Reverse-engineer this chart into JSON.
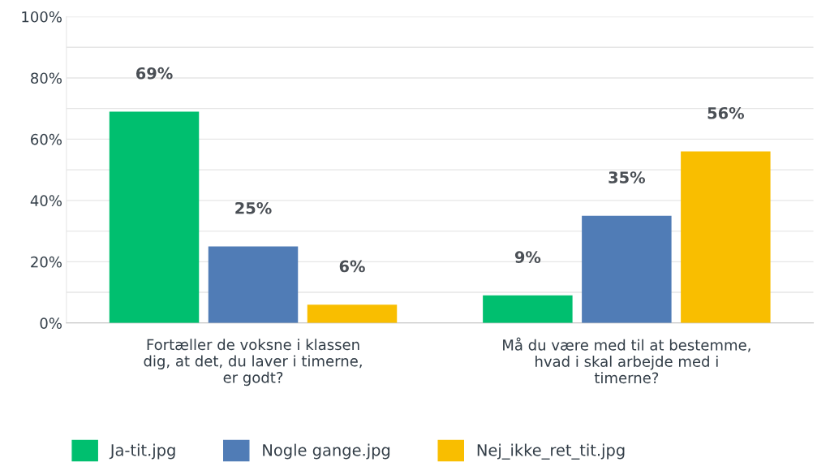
{
  "chart_data": {
    "type": "bar",
    "categories": [
      "Fortæller de voksne i klassen\ndig, at det, du laver i timerne,\ner godt?",
      "Må du være med til at bestemme,\nhvad i skal arbejde med i\ntimerne?"
    ],
    "series": [
      {
        "name": "Ja-tit.jpg",
        "color": "#00bf6f",
        "values": [
          69,
          9
        ]
      },
      {
        "name": "Nogle gange.jpg",
        "color": "#507cb6",
        "values": [
          25,
          35
        ]
      },
      {
        "name": "Nej_ikke_ret_tit.jpg",
        "color": "#f9be00",
        "values": [
          6,
          56
        ]
      }
    ],
    "ylim": [
      0,
      100
    ],
    "yticks": [
      {
        "value": 0,
        "label": "0%"
      },
      {
        "value": 10,
        "label": null
      },
      {
        "value": 20,
        "label": "20%"
      },
      {
        "value": 30,
        "label": null
      },
      {
        "value": 40,
        "label": "40%"
      },
      {
        "value": 50,
        "label": null
      },
      {
        "value": 60,
        "label": "60%"
      },
      {
        "value": 70,
        "label": null
      },
      {
        "value": 80,
        "label": "80%"
      },
      {
        "value": 90,
        "label": null
      },
      {
        "value": 100,
        "label": "100%"
      }
    ],
    "value_labels": [
      [
        "69%",
        "9%"
      ],
      [
        "25%",
        "35%"
      ],
      [
        "6%",
        "56%"
      ]
    ],
    "grid": "y",
    "legend": "bottom"
  }
}
